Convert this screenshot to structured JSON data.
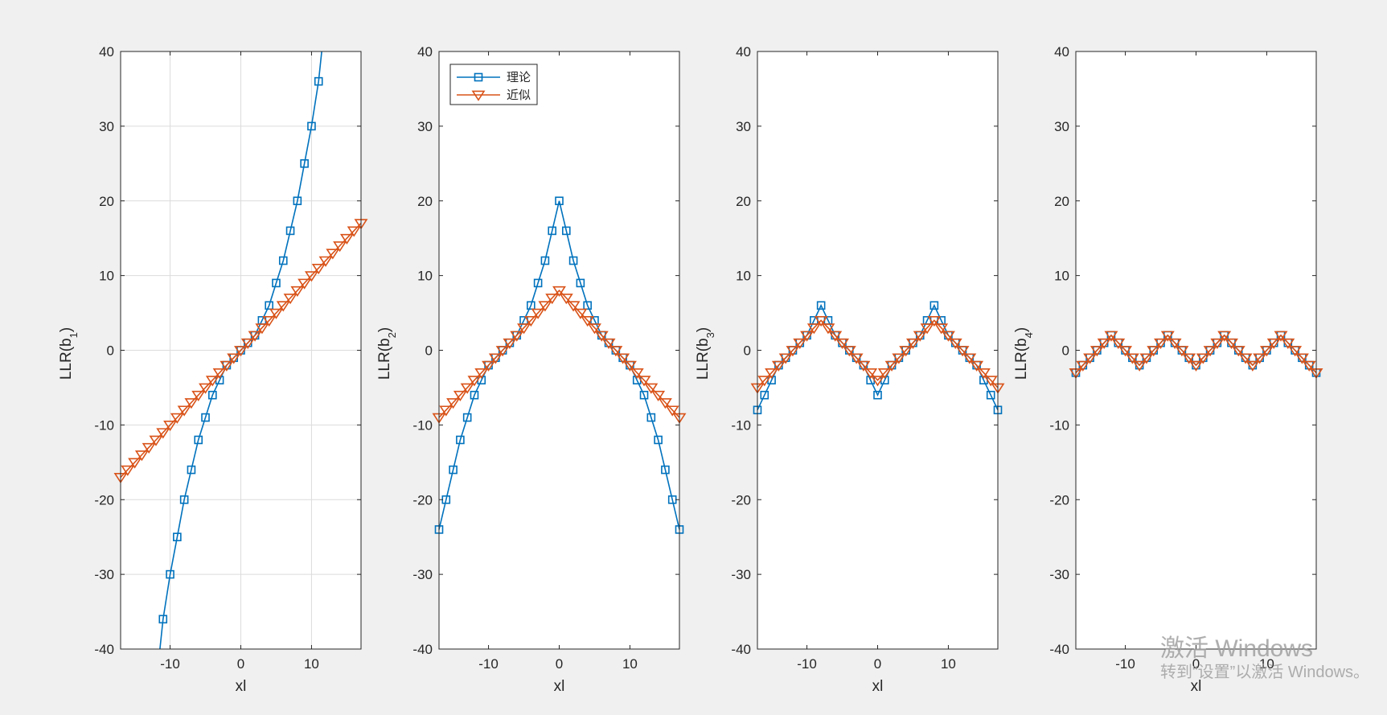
{
  "colors": {
    "background": "#f0f0f0",
    "series_theory": "#0072bd",
    "series_approx": "#d95319"
  },
  "legend": {
    "theory": "理论",
    "approx": "近似"
  },
  "watermark": {
    "title": "激活 Windows",
    "subtitle": "转到“设置”以激活 Windows。"
  },
  "chart_data": [
    {
      "type": "line",
      "xlabel": "xl",
      "ylabel": "LLR(b",
      "ylabel_sub": "1",
      "xlim": [
        -17,
        17
      ],
      "ylim": [
        -40,
        40
      ],
      "xticks": [
        -10,
        0,
        10
      ],
      "yticks": [
        -40,
        -30,
        -20,
        -10,
        0,
        10,
        20,
        30,
        40
      ],
      "grid": true,
      "legend": false,
      "series": [
        {
          "key": "theory",
          "marker": "square",
          "x": [
            -12,
            -11,
            -10,
            -9,
            -8,
            -7,
            -6,
            -5,
            -4,
            -3,
            -2,
            -1,
            0,
            1,
            2,
            3,
            4,
            5,
            6,
            7,
            8,
            9,
            10,
            11,
            12
          ],
          "y": [
            -45,
            -36,
            -30,
            -25,
            -20,
            -16,
            -12,
            -9,
            -6,
            -4,
            -2,
            -1,
            0,
            1,
            2,
            4,
            6,
            9,
            12,
            16,
            20,
            25,
            30,
            36,
            45
          ]
        },
        {
          "key": "approx",
          "marker": "triangle-down",
          "x": [
            -17,
            -16,
            -15,
            -14,
            -13,
            -12,
            -11,
            -10,
            -9,
            -8,
            -7,
            -6,
            -5,
            -4,
            -3,
            -2,
            -1,
            0,
            1,
            2,
            3,
            4,
            5,
            6,
            7,
            8,
            9,
            10,
            11,
            12,
            13,
            14,
            15,
            16,
            17
          ],
          "y": [
            -17,
            -16,
            -15,
            -14,
            -13,
            -12,
            -11,
            -10,
            -9,
            -8,
            -7,
            -6,
            -5,
            -4,
            -3,
            -2,
            -1,
            0,
            1,
            2,
            3,
            4,
            5,
            6,
            7,
            8,
            9,
            10,
            11,
            12,
            13,
            14,
            15,
            16,
            17
          ]
        }
      ]
    },
    {
      "type": "line",
      "xlabel": "xl",
      "ylabel": "LLR(b",
      "ylabel_sub": "2",
      "xlim": [
        -17,
        17
      ],
      "ylim": [
        -40,
        40
      ],
      "xticks": [
        -10,
        0,
        10
      ],
      "yticks": [
        -40,
        -30,
        -20,
        -10,
        0,
        10,
        20,
        30,
        40
      ],
      "grid": false,
      "legend": "top-left",
      "series": [
        {
          "key": "theory",
          "marker": "square",
          "x": [
            -17,
            -16,
            -15,
            -14,
            -13,
            -12,
            -11,
            -10,
            -9,
            -8,
            -7,
            -6,
            -5,
            -4,
            -3,
            -2,
            -1,
            0,
            1,
            2,
            3,
            4,
            5,
            6,
            7,
            8,
            9,
            10,
            11,
            12,
            13,
            14,
            15,
            16,
            17
          ],
          "y": [
            -24,
            -20,
            -16,
            -12,
            -9,
            -6,
            -4,
            -2,
            -1,
            0,
            1,
            2,
            4,
            6,
            9,
            12,
            16,
            20,
            16,
            12,
            9,
            6,
            4,
            2,
            1,
            0,
            -1,
            -2,
            -4,
            -6,
            -9,
            -12,
            -16,
            -20,
            -24
          ]
        },
        {
          "key": "approx",
          "marker": "triangle-down",
          "x": [
            -17,
            -16,
            -15,
            -14,
            -13,
            -12,
            -11,
            -10,
            -9,
            -8,
            -7,
            -6,
            -5,
            -4,
            -3,
            -2,
            -1,
            0,
            1,
            2,
            3,
            4,
            5,
            6,
            7,
            8,
            9,
            10,
            11,
            12,
            13,
            14,
            15,
            16,
            17
          ],
          "y": [
            -9,
            -8,
            -7,
            -6,
            -5,
            -4,
            -3,
            -2,
            -1,
            0,
            1,
            2,
            3,
            4,
            5,
            6,
            7,
            8,
            7,
            6,
            5,
            4,
            3,
            2,
            1,
            0,
            -1,
            -2,
            -3,
            -4,
            -5,
            -6,
            -7,
            -8,
            -9
          ]
        }
      ]
    },
    {
      "type": "line",
      "xlabel": "xl",
      "ylabel": "LLR(b",
      "ylabel_sub": "3",
      "xlim": [
        -17,
        17
      ],
      "ylim": [
        -40,
        40
      ],
      "xticks": [
        -10,
        0,
        10
      ],
      "yticks": [
        -40,
        -30,
        -20,
        -10,
        0,
        10,
        20,
        30,
        40
      ],
      "grid": false,
      "legend": false,
      "series": [
        {
          "key": "theory",
          "marker": "square",
          "x": [
            -17,
            -16,
            -15,
            -14,
            -13,
            -12,
            -11,
            -10,
            -9,
            -8,
            -7,
            -6,
            -5,
            -4,
            -3,
            -2,
            -1,
            0,
            1,
            2,
            3,
            4,
            5,
            6,
            7,
            8,
            9,
            10,
            11,
            12,
            13,
            14,
            15,
            16,
            17
          ],
          "y": [
            -8,
            -6,
            -4,
            -2,
            -1,
            0,
            1,
            2,
            4,
            6,
            4,
            2,
            1,
            0,
            -1,
            -2,
            -4,
            -6,
            -4,
            -2,
            -1,
            0,
            1,
            2,
            4,
            6,
            4,
            2,
            1,
            0,
            -1,
            -2,
            -4,
            -6,
            -8
          ]
        },
        {
          "key": "approx",
          "marker": "triangle-down",
          "x": [
            -17,
            -16,
            -15,
            -14,
            -13,
            -12,
            -11,
            -10,
            -9,
            -8,
            -7,
            -6,
            -5,
            -4,
            -3,
            -2,
            -1,
            0,
            1,
            2,
            3,
            4,
            5,
            6,
            7,
            8,
            9,
            10,
            11,
            12,
            13,
            14,
            15,
            16,
            17
          ],
          "y": [
            -5,
            -4,
            -3,
            -2,
            -1,
            0,
            1,
            2,
            3,
            4,
            3,
            2,
            1,
            0,
            -1,
            -2,
            -3,
            -4,
            -3,
            -2,
            -1,
            0,
            1,
            2,
            3,
            4,
            3,
            2,
            1,
            0,
            -1,
            -2,
            -3,
            -4,
            -5
          ]
        }
      ]
    },
    {
      "type": "line",
      "xlabel": "xl",
      "ylabel": "LLR(b",
      "ylabel_sub": "4",
      "xlim": [
        -17,
        17
      ],
      "ylim": [
        -40,
        40
      ],
      "xticks": [
        -10,
        0,
        10
      ],
      "yticks": [
        -40,
        -30,
        -20,
        -10,
        0,
        10,
        20,
        30,
        40
      ],
      "grid": false,
      "legend": false,
      "series": [
        {
          "key": "theory",
          "marker": "square",
          "x": [
            -17,
            -16,
            -15,
            -14,
            -13,
            -12,
            -11,
            -10,
            -9,
            -8,
            -7,
            -6,
            -5,
            -4,
            -3,
            -2,
            -1,
            0,
            1,
            2,
            3,
            4,
            5,
            6,
            7,
            8,
            9,
            10,
            11,
            12,
            13,
            14,
            15,
            16,
            17
          ],
          "y": [
            -3,
            -2,
            -1,
            0,
            1,
            2,
            1,
            0,
            -1,
            -2,
            -1,
            0,
            1,
            2,
            1,
            0,
            -1,
            -2,
            -1,
            0,
            1,
            2,
            1,
            0,
            -1,
            -2,
            -1,
            0,
            1,
            2,
            1,
            0,
            -1,
            -2,
            -3
          ]
        },
        {
          "key": "approx",
          "marker": "triangle-down",
          "x": [
            -17,
            -16,
            -15,
            -14,
            -13,
            -12,
            -11,
            -10,
            -9,
            -8,
            -7,
            -6,
            -5,
            -4,
            -3,
            -2,
            -1,
            0,
            1,
            2,
            3,
            4,
            5,
            6,
            7,
            8,
            9,
            10,
            11,
            12,
            13,
            14,
            15,
            16,
            17
          ],
          "y": [
            -3,
            -2,
            -1,
            0,
            1,
            2,
            1,
            0,
            -1,
            -2,
            -1,
            0,
            1,
            2,
            1,
            0,
            -1,
            -2,
            -1,
            0,
            1,
            2,
            1,
            0,
            -1,
            -2,
            -1,
            0,
            1,
            2,
            1,
            0,
            -1,
            -2,
            -3
          ]
        }
      ]
    }
  ]
}
